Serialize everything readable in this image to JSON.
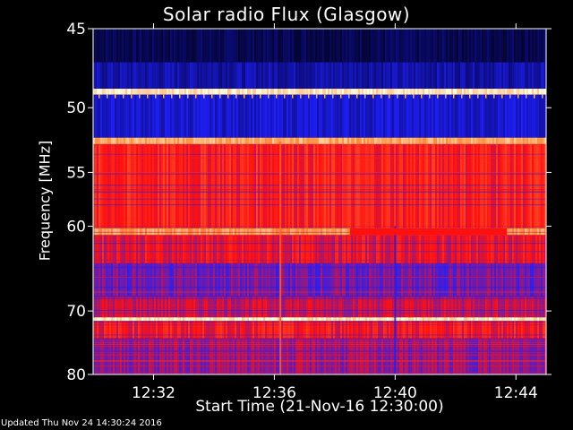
{
  "chart_data": {
    "type": "heatmap",
    "title": "Solar radio Flux (Glasgow)",
    "xlabel": "Start Time (21-Nov-16 12:30:00)",
    "ylabel": "Frequency [MHz]",
    "x_ticks": [
      "12:32",
      "12:36",
      "12:40",
      "12:44"
    ],
    "x_tick_minutes": [
      2,
      6,
      10,
      14
    ],
    "xlim_minutes": [
      0,
      15
    ],
    "y_ticks": [
      45,
      50,
      55,
      60,
      70,
      80
    ],
    "ylim_mhz": [
      45,
      80
    ],
    "y_scale": "reciprocal",
    "colormap": [
      "#000000",
      "#0a0a70",
      "#2020ff",
      "#ff1010",
      "#ff9040",
      "#ffffe0"
    ],
    "bands": [
      {
        "mhz_start": 45.0,
        "mhz_end": 47.0,
        "level": 0.15
      },
      {
        "mhz_start": 47.0,
        "mhz_end": 48.7,
        "level": 0.28
      },
      {
        "mhz_start": 48.7,
        "mhz_end": 49.1,
        "level": 0.95
      },
      {
        "mhz_start": 49.1,
        "mhz_end": 52.2,
        "level": 0.33
      },
      {
        "mhz_start": 52.2,
        "mhz_end": 52.7,
        "level": 0.85
      },
      {
        "mhz_start": 52.7,
        "mhz_end": 60.2,
        "level": 0.62
      },
      {
        "mhz_start": 60.2,
        "mhz_end": 60.9,
        "level": 0.82
      },
      {
        "mhz_start": 60.9,
        "mhz_end": 64.0,
        "level": 0.58
      },
      {
        "mhz_start": 64.0,
        "mhz_end": 68.0,
        "level": 0.47
      },
      {
        "mhz_start": 68.0,
        "mhz_end": 70.9,
        "level": 0.55
      },
      {
        "mhz_start": 70.9,
        "mhz_end": 71.4,
        "level": 0.95
      },
      {
        "mhz_start": 71.4,
        "mhz_end": 74.0,
        "level": 0.6
      },
      {
        "mhz_start": 74.0,
        "mhz_end": 80.0,
        "level": 0.5
      }
    ],
    "features": [
      {
        "kind": "spike",
        "minute": 6.2,
        "mhz_start": 52.5,
        "mhz_end": 80.0,
        "level": 0.72
      },
      {
        "kind": "spike",
        "minute": 10.0,
        "mhz_start": 60.0,
        "mhz_end": 80.0,
        "level": 0.38
      },
      {
        "kind": "gap",
        "minute_start": 8.5,
        "minute_end": 13.7,
        "mhz_start": 60.2,
        "mhz_end": 60.9,
        "level": 0.6
      }
    ],
    "grid": false,
    "legend": "none"
  },
  "footer": {
    "updated": "Updated Thu Nov 24 14:30:24 2016"
  }
}
